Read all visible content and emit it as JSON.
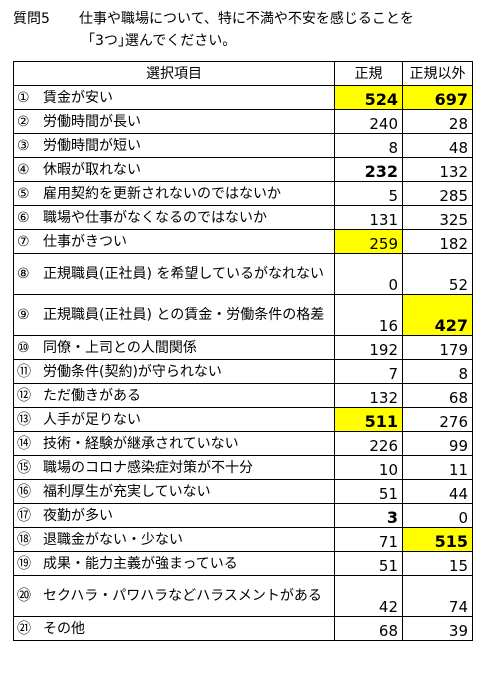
{
  "question": {
    "label": "質問5",
    "line1": "仕事や職場について、特に不満や不安を感じることを",
    "line2": "｢3つ｣選んでください。"
  },
  "table": {
    "headers": [
      "選択項目",
      "正規",
      "正規以外"
    ],
    "rows": [
      {
        "num": "①",
        "item": "賃金が安い",
        "regular": "524",
        "nonregular": "697"
      },
      {
        "num": "②",
        "item": "労働時間が長い",
        "regular": "240",
        "nonregular": "28"
      },
      {
        "num": "③",
        "item": "労働時間が短い",
        "regular": "8",
        "nonregular": "48"
      },
      {
        "num": "④",
        "item": "休暇が取れない",
        "regular": "232",
        "nonregular": "132"
      },
      {
        "num": "⑤",
        "item": "雇用契約を更新されないのではないか",
        "regular": "5",
        "nonregular": "285"
      },
      {
        "num": "⑥",
        "item": "職場や仕事がなくなるのではないか",
        "regular": "131",
        "nonregular": "325"
      },
      {
        "num": "⑦",
        "item": "仕事がきつい",
        "regular": "259",
        "nonregular": "182"
      },
      {
        "num": "⑧",
        "item": "正規職員(正社員) を希望しているがなれない",
        "regular": "0",
        "nonregular": "52"
      },
      {
        "num": "⑨",
        "item": "正規職員(正社員) との賃金・労働条件の格差",
        "regular": "16",
        "nonregular": "427"
      },
      {
        "num": "⑩",
        "item": "同僚・上司との人間関係",
        "regular": "192",
        "nonregular": "179"
      },
      {
        "num": "⑪",
        "item": "労働条件(契約)が守られない",
        "regular": "7",
        "nonregular": "8"
      },
      {
        "num": "⑫",
        "item": "ただ働きがある",
        "regular": "132",
        "nonregular": "68"
      },
      {
        "num": "⑬",
        "item": "人手が足りない",
        "regular": "511",
        "nonregular": "276"
      },
      {
        "num": "⑭",
        "item": "技術・経験が継承されていない",
        "regular": "226",
        "nonregular": "99"
      },
      {
        "num": "⑮",
        "item": "職場のコロナ感染症対策が不十分",
        "regular": "10",
        "nonregular": "11"
      },
      {
        "num": "⑯",
        "item": "福利厚生が充実していない",
        "regular": "51",
        "nonregular": "44"
      },
      {
        "num": "⑰",
        "item": "夜勤が多い",
        "regular": "3",
        "nonregular": "0"
      },
      {
        "num": "⑱",
        "item": "退職金がない・少ない",
        "regular": "71",
        "nonregular": "515"
      },
      {
        "num": "⑲",
        "item": "成果・能力主義が強まっている",
        "regular": "51",
        "nonregular": "15"
      },
      {
        "num": "⑳",
        "item": "セクハラ・パワハラなどハラスメントがある",
        "regular": "42",
        "nonregular": "74"
      },
      {
        "num": "㉑",
        "item": "その他",
        "regular": "68",
        "nonregular": "39"
      }
    ]
  },
  "colors": {
    "highlight": "#ffff00"
  }
}
